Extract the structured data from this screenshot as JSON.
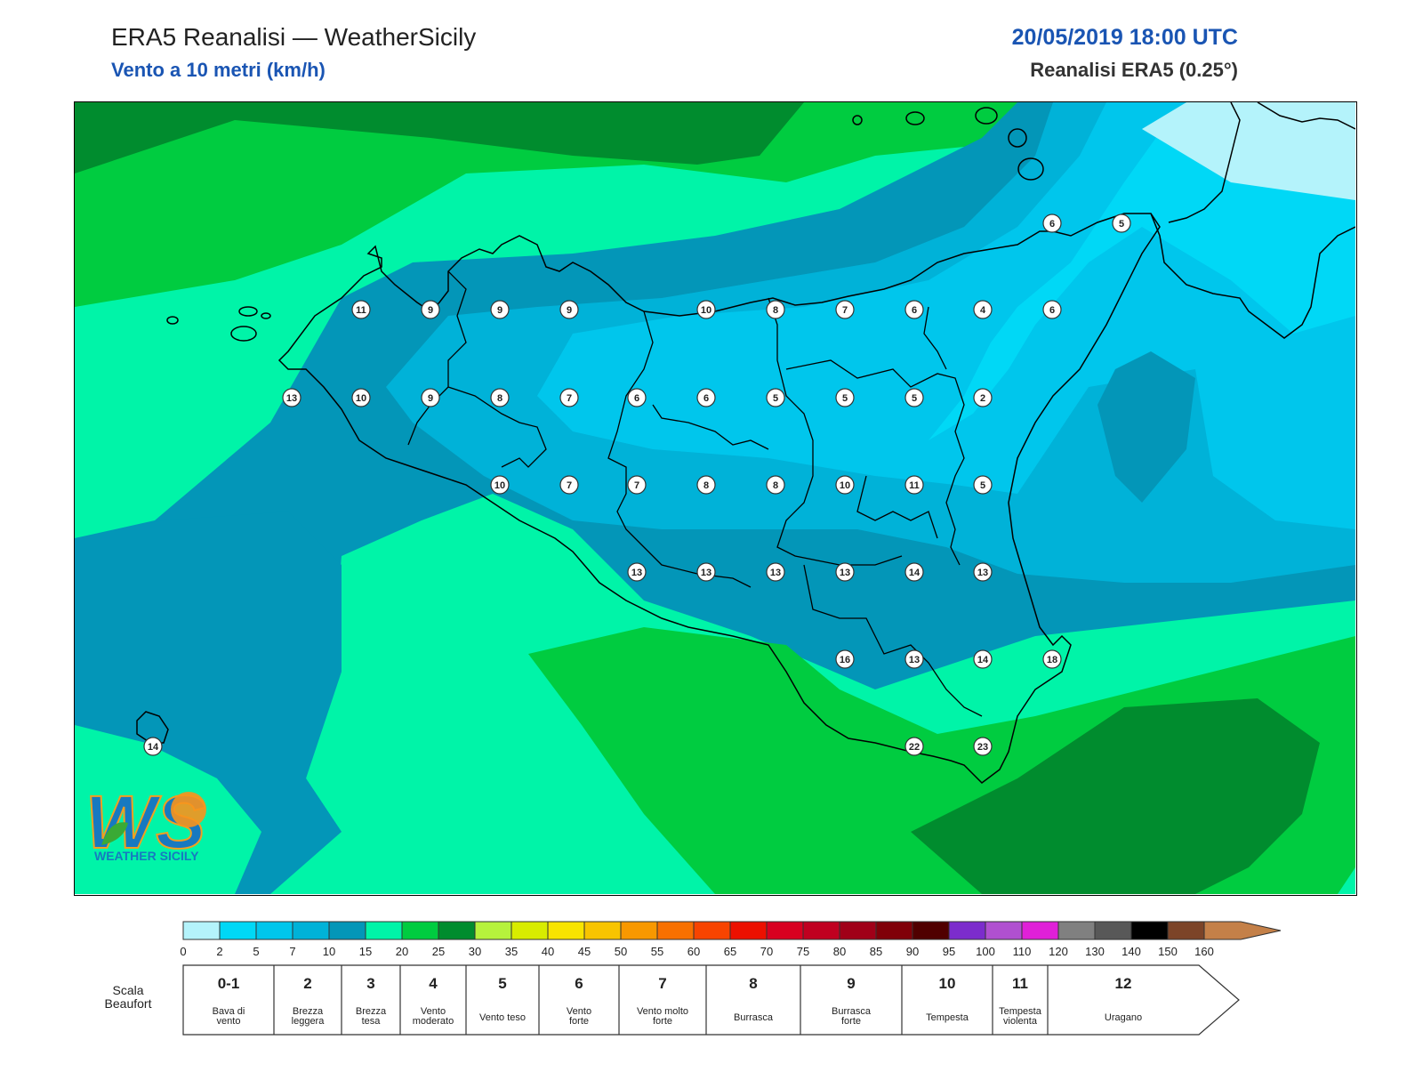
{
  "header": {
    "title": "ERA5 Reanalisi — WeatherSicily",
    "subtitle": "Vento a 10 metri (km/h)",
    "datetime": "20/05/2019 18:00 UTC",
    "resolution": "Reanalisi ERA5 (0.25°)"
  },
  "logo": {
    "text": "WEATHER SICILY",
    "letters": "WS"
  },
  "colors": {
    "c0": "#b4f3fb",
    "c2": "#00d8f6",
    "c5": "#00c6ec",
    "c7": "#00b2d8",
    "c10": "#0396b8",
    "c15": "#00f4a8",
    "c20": "#00cc40",
    "c25": "#008c2e",
    "coast": "#000000"
  },
  "station_values": [
    11,
    9,
    9,
    9,
    10,
    8,
    7,
    6,
    4,
    6,
    6,
    5,
    13,
    10,
    9,
    8,
    7,
    6,
    6,
    5,
    5,
    5,
    2,
    10,
    7,
    7,
    8,
    8,
    10,
    11,
    5,
    13,
    13,
    13,
    13,
    14,
    13,
    16,
    13,
    14,
    18,
    22,
    23,
    14
  ],
  "colorbar": {
    "ticks": [
      "0",
      "2",
      "5",
      "7",
      "10",
      "15",
      "20",
      "25",
      "30",
      "35",
      "40",
      "45",
      "50",
      "55",
      "60",
      "65",
      "70",
      "75",
      "80",
      "85",
      "90",
      "95",
      "100",
      "110",
      "120",
      "130",
      "140",
      "150",
      "160"
    ],
    "colors": [
      "#b4f3fb",
      "#00d8f6",
      "#00c6ec",
      "#00b2d8",
      "#0396b8",
      "#00f4a8",
      "#00cc40",
      "#008c2e",
      "#b6f23c",
      "#d8ec00",
      "#f8e400",
      "#f8c400",
      "#f89800",
      "#f87000",
      "#f84400",
      "#ec1000",
      "#d80020",
      "#c00020",
      "#a00018",
      "#800008",
      "#500000",
      "#7c2ccc",
      "#b050d0",
      "#e020d8",
      "#808080",
      "#585858",
      "#000000",
      "#7c4428",
      "#c48048"
    ]
  },
  "beaufort": {
    "label": "Scala\nBeaufort",
    "classes": [
      {
        "num": "0-1",
        "name": "Bava di\nvento"
      },
      {
        "num": "2",
        "name": "Brezza\nleggera"
      },
      {
        "num": "3",
        "name": "Brezza\ntesa"
      },
      {
        "num": "4",
        "name": "Vento\nmoderato"
      },
      {
        "num": "5",
        "name": "Vento teso"
      },
      {
        "num": "6",
        "name": "Vento\nforte"
      },
      {
        "num": "7",
        "name": "Vento molto\nforte"
      },
      {
        "num": "8",
        "name": "Burrasca"
      },
      {
        "num": "9",
        "name": "Burrasca\nforte"
      },
      {
        "num": "10",
        "name": "Tempesta"
      },
      {
        "num": "11",
        "name": "Tempesta\nviolenta"
      },
      {
        "num": "12",
        "name": "Uragano"
      }
    ]
  }
}
